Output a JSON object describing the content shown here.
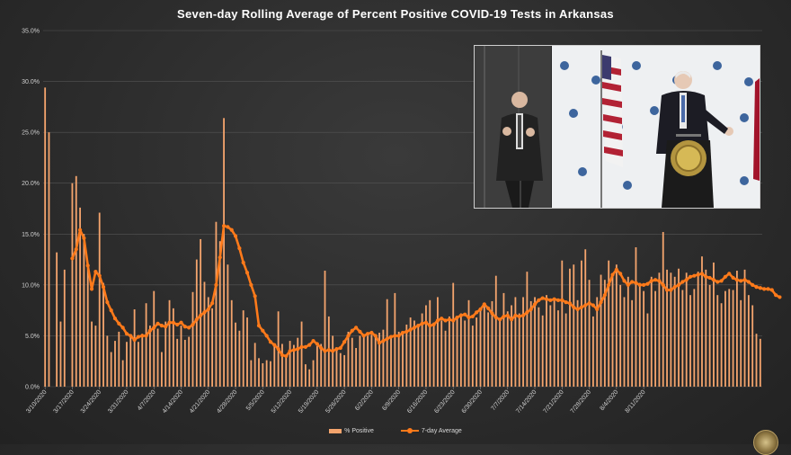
{
  "chart_data": {
    "type": "bar",
    "title": "Seven-day Rolling Average of Percent Positive COVID-19 Tests in Arkansas",
    "start_date": "3/10/2020",
    "y_tick_labels": [
      "0.0%",
      "5.0%",
      "10.0%",
      "15.0%",
      "20.0%",
      "25.0%",
      "30.0%",
      "35.0%"
    ],
    "ylim": [
      0,
      35
    ],
    "x_tick_labels": [
      "3/10/2020",
      "3/17/2020",
      "3/24/2020",
      "3/31/2020",
      "4/7/2020",
      "4/14/2020",
      "4/21/2020",
      "4/28/2020",
      "5/5/2020",
      "5/12/2020",
      "5/19/2020",
      "5/26/2020",
      "6/2/2020",
      "6/9/2020",
      "6/16/2020",
      "6/23/2020",
      "6/30/2020",
      "7/7/2020",
      "7/14/2020",
      "7/21/2020",
      "7/28/2020",
      "8/4/2020",
      "8/11/2020"
    ],
    "grid": true,
    "legend_position": "bottom-center",
    "colors": {
      "bars": "#f4a46d",
      "line": "#ff7a1a"
    },
    "series": [
      {
        "name": "% Positive",
        "type": "bar",
        "values": [
          29.4,
          25.0,
          0,
          13.2,
          6.4,
          11.5,
          0,
          20.0,
          20.7,
          17.6,
          15.0,
          12.0,
          6.4,
          6.0,
          17.1,
          10.2,
          5.0,
          3.4,
          4.5,
          5.4,
          2.6,
          4.4,
          5.0,
          7.6,
          4.4,
          5.2,
          8.2,
          6.0,
          9.4,
          5.7,
          3.4,
          6.4,
          8.5,
          7.7,
          4.7,
          6.0,
          4.6,
          4.9,
          9.3,
          12.5,
          14.5,
          10.3,
          8.8,
          7.7,
          16.2,
          14.3,
          26.4,
          12.0,
          8.5,
          6.3,
          5.5,
          7.5,
          6.8,
          2.6,
          4.3,
          2.8,
          2.3,
          2.6,
          2.5,
          4.2,
          7.4,
          4.2,
          3.1,
          4.5,
          4.1,
          4.8,
          6.4,
          2.2,
          1.7,
          2.6,
          4.0,
          4.2,
          11.4,
          6.9,
          5.0,
          3.6,
          3.3,
          3.1,
          5.4,
          4.8,
          3.8,
          5.0,
          4.9,
          5.0,
          5.1,
          4.9,
          5.3,
          5.6,
          8.6,
          4.8,
          9.2,
          5.4,
          5.3,
          6.1,
          6.8,
          6.5,
          6.0,
          7.2,
          8.0,
          8.5,
          6.3,
          8.8,
          6.5,
          5.5,
          6.9,
          10.2,
          6.9,
          7.2,
          6.5,
          8.5,
          6.0,
          6.8,
          7.6,
          7.9,
          7.3,
          8.4,
          10.9,
          6.5,
          9.2,
          7.4,
          8.0,
          8.8,
          7.2,
          8.8,
          11.3,
          8.4,
          8.8,
          7.8,
          7.0,
          9.0,
          8.0,
          8.5,
          7.5,
          12.4,
          7.2,
          11.6,
          12.0,
          8.5,
          12.4,
          13.5,
          10.5,
          6.9,
          8.8,
          11.0,
          10.5,
          12.4,
          11.0,
          12.0,
          10.0,
          8.8,
          10.8,
          8.5,
          13.7,
          10.2,
          9.4,
          7.2,
          10.8,
          9.4,
          11.2,
          15.2,
          11.5,
          11.2,
          10.8,
          11.6,
          9.5,
          11.2,
          9.0,
          9.6,
          11.3,
          12.8,
          11.5,
          10.0,
          12.2,
          9.0,
          8.2,
          9.4,
          9.6,
          9.5,
          11.4,
          8.5,
          11.5,
          9.0,
          8.0,
          5.2,
          4.7
        ]
      },
      {
        "name": "7-day Average",
        "type": "line",
        "values": [
          null,
          null,
          null,
          null,
          null,
          null,
          null,
          12.6,
          13.5,
          15.4,
          14.6,
          11.9,
          9.6,
          11.3,
          10.9,
          9.8,
          8.3,
          7.5,
          6.7,
          6.2,
          5.8,
          5.2,
          5.0,
          4.6,
          4.9,
          5.0,
          5.0,
          5.5,
          5.8,
          6.2,
          6.0,
          5.9,
          6.3,
          6.3,
          6.1,
          6.3,
          5.9,
          5.8,
          6.1,
          6.6,
          7.0,
          7.3,
          7.6,
          8.2,
          10.0,
          12.7,
          15.8,
          15.7,
          15.4,
          14.8,
          13.6,
          12.2,
          11.2,
          10.0,
          8.9,
          6.0,
          5.5,
          5.0,
          4.4,
          4.1,
          3.7,
          3.1,
          3.0,
          3.5,
          3.6,
          3.7,
          3.9,
          3.9,
          4.1,
          4.5,
          4.2,
          3.8,
          3.5,
          3.6,
          3.5,
          3.7,
          3.8,
          4.4,
          5.0,
          5.5,
          5.8,
          5.4,
          5.0,
          5.2,
          5.3,
          5.0,
          4.3,
          4.5,
          4.7,
          4.9,
          5.0,
          5.0,
          5.3,
          5.4,
          5.6,
          5.8,
          6.0,
          6.2,
          6.3,
          6.0,
          6.1,
          6.5,
          6.7,
          6.5,
          6.6,
          6.5,
          6.8,
          7.0,
          7.1,
          6.8,
          6.9,
          7.3,
          7.6,
          8.1,
          7.7,
          7.2,
          6.8,
          6.6,
          6.9,
          7.0,
          6.6,
          7.0,
          6.9,
          7.0,
          7.3,
          7.6,
          8.1,
          8.5,
          8.7,
          8.6,
          8.5,
          8.6,
          8.5,
          8.5,
          8.3,
          8.2,
          7.8,
          7.6,
          7.8,
          8.0,
          8.2,
          8.0,
          7.6,
          8.3,
          9.0,
          10.0,
          11.0,
          11.5,
          11.1,
          10.4,
          10.0,
          10.3,
          10.2,
          10.0,
          10.0,
          10.1,
          10.4,
          10.5,
          10.4,
          10.0,
          9.5,
          9.5,
          9.8,
          10.0,
          10.3,
          10.5,
          10.8,
          10.9,
          11.0,
          11.1,
          10.8,
          10.7,
          10.5,
          10.3,
          10.4,
          10.8,
          11.1,
          10.7,
          10.5,
          10.4,
          10.5,
          10.3,
          10.0,
          9.8,
          9.7,
          9.6,
          9.6,
          9.5,
          9.0,
          8.8
        ]
      }
    ]
  },
  "legend": {
    "bar_label": "% Positive",
    "line_label": "7-day Average"
  },
  "inset": {
    "flag_stripe_color": "#b22234",
    "canton_color": "#3c3b6e"
  }
}
